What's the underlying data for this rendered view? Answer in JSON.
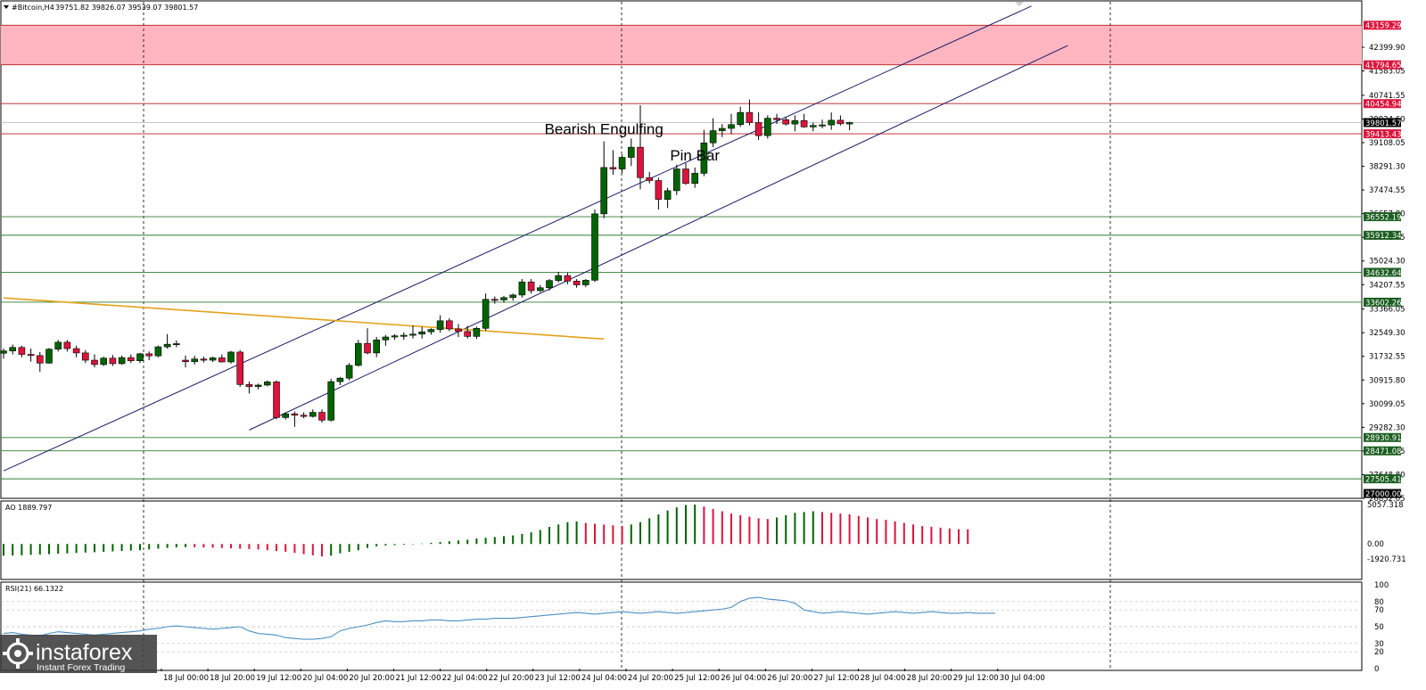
{
  "header": {
    "symbol": "#Bitcoin,H4",
    "ohlc": "39751.82 39826.07 39539.07 39801.57"
  },
  "colors": {
    "bull": "#006400",
    "bear": "#dc143c",
    "resistance_zone": "#ffb6c1",
    "level_line_green": "#2e7d32",
    "level_line_red": "#b71c1c",
    "channel": "#1a1a66",
    "trendline": "#e3a21a",
    "rsi": "#4a90c2"
  },
  "chart_data": [
    {
      "type": "candlestick",
      "symbol": "#Bitcoin",
      "timeframe": "H4",
      "ylim": [
        26832.05,
        44000
      ],
      "x_tick_labels": [
        "18 Jul 00:00",
        "18 Jul 20:00",
        "19 Jul 12:00",
        "20 Jul 04:00",
        "20 Jul 20:00",
        "21 Jul 12:00",
        "22 Jul 04:00",
        "22 Jul 20:00",
        "23 Jul 12:00",
        "24 Jul 04:00",
        "24 Jul 20:00",
        "25 Jul 12:00",
        "26 Jul 04:00",
        "26 Jul 20:00",
        "27 Jul 12:00",
        "28 Jul 04:00",
        "28 Jul 20:00",
        "29 Jul 12:00",
        "30 Jul 04:00"
      ],
      "y_tick_labels": [
        "42399.90",
        "41583.05",
        "40741.55",
        "39924.60",
        "39108.05",
        "38291.30",
        "37474.55",
        "36657.80",
        "35841.05",
        "35024.30",
        "34207.55",
        "33366.05",
        "32549.30",
        "31732.55",
        "30915.80",
        "30099.05",
        "29282.30",
        "28465.55",
        "27648.80",
        "26832.05"
      ],
      "price_tags": [
        {
          "value": 43159.29,
          "label": "43159.29",
          "color": "#dc143c"
        },
        {
          "value": 41794.65,
          "label": "41794.65",
          "color": "#dc143c"
        },
        {
          "value": 40454.94,
          "label": "40454.94",
          "color": "#dc143c"
        },
        {
          "value": 39801.57,
          "label": "39801.57",
          "color": "#000000"
        },
        {
          "value": 39413.43,
          "label": "39413.43",
          "color": "#dc143c"
        },
        {
          "value": 36552.19,
          "label": "36552.19",
          "color": "#1b5e20"
        },
        {
          "value": 35912.34,
          "label": "35912.34",
          "color": "#1b5e20"
        },
        {
          "value": 34632.64,
          "label": "34632.64",
          "color": "#1b5e20"
        },
        {
          "value": 33602.26,
          "label": "33602.26",
          "color": "#1b5e20"
        },
        {
          "value": 28930.91,
          "label": "28930.91",
          "color": "#1b5e20"
        },
        {
          "value": 28471.08,
          "label": "28471.08",
          "color": "#1b5e20"
        },
        {
          "value": 27505.41,
          "label": "27505.41",
          "color": "#1b5e20"
        },
        {
          "value": 27000.0,
          "label": "27000.00",
          "color": "#000000"
        }
      ],
      "resistance_zone": [
        41794.65,
        43159.29
      ],
      "annotations": [
        {
          "text": "Bearish Engulfing",
          "candle": 66
        },
        {
          "text": "Pin Bar",
          "candle": 76
        }
      ],
      "channel": [
        {
          "from": {
            "candle": 0,
            "price": 27780
          },
          "to": {
            "candle": 113,
            "price": 43820
          }
        },
        {
          "from": {
            "candle": 27,
            "price": 29190
          },
          "to": {
            "candle": 117,
            "price": 42460
          }
        }
      ],
      "trendline": {
        "from": {
          "candle": 0,
          "price": 33750
        },
        "to": {
          "candle": 66,
          "price": 32330
        }
      },
      "candles": [
        [
          31840,
          32000,
          31650,
          31920
        ],
        [
          31920,
          32140,
          31800,
          32040
        ],
        [
          32040,
          32100,
          31700,
          31800
        ],
        [
          31800,
          32000,
          31550,
          31760
        ],
        [
          31760,
          31880,
          31200,
          31500
        ],
        [
          31500,
          32020,
          31480,
          31980
        ],
        [
          31980,
          32300,
          31900,
          32220
        ],
        [
          32220,
          32300,
          31900,
          32000
        ],
        [
          32000,
          32100,
          31700,
          31850
        ],
        [
          31850,
          31950,
          31500,
          31600
        ],
        [
          31600,
          31800,
          31350,
          31450
        ],
        [
          31450,
          31720,
          31400,
          31670
        ],
        [
          31670,
          31780,
          31400,
          31480
        ],
        [
          31480,
          31760,
          31440,
          31690
        ],
        [
          31690,
          31800,
          31500,
          31580
        ],
        [
          31580,
          31850,
          31500,
          31820
        ],
        [
          31820,
          31900,
          31600,
          31750
        ],
        [
          31750,
          32100,
          31700,
          32060
        ],
        [
          32060,
          32500,
          32000,
          32150
        ],
        [
          32150,
          32280,
          32050,
          32170
        ],
        [
          31600,
          31760,
          31350,
          31550
        ],
        [
          31550,
          31750,
          31450,
          31640
        ],
        [
          31640,
          31720,
          31520,
          31600
        ],
        [
          31600,
          31720,
          31540,
          31680
        ],
        [
          31680,
          31800,
          31520,
          31540
        ],
        [
          31540,
          31920,
          31480,
          31880
        ],
        [
          31880,
          31950,
          30680,
          30760
        ],
        [
          30760,
          30860,
          30450,
          30690
        ],
        [
          30690,
          30790,
          30590,
          30740
        ],
        [
          30740,
          30900,
          30700,
          30850
        ],
        [
          30850,
          30900,
          29560,
          29620
        ],
        [
          29620,
          29800,
          29550,
          29750
        ],
        [
          29750,
          29830,
          29300,
          29700
        ],
        [
          29700,
          29800,
          29600,
          29660
        ],
        [
          29660,
          29900,
          29620,
          29800
        ],
        [
          29800,
          29900,
          29450,
          29530
        ],
        [
          29530,
          30950,
          29480,
          30860
        ],
        [
          30860,
          31020,
          30740,
          30980
        ],
        [
          30980,
          31500,
          30900,
          31420
        ],
        [
          31420,
          32300,
          31380,
          32180
        ],
        [
          32180,
          32700,
          31800,
          31850
        ],
        [
          31850,
          32400,
          31700,
          32300
        ],
        [
          32300,
          32470,
          32100,
          32400
        ],
        [
          32400,
          32500,
          32300,
          32440
        ],
        [
          32440,
          32560,
          32300,
          32460
        ],
        [
          32460,
          32800,
          32350,
          32500
        ],
        [
          32500,
          32750,
          32350,
          32580
        ],
        [
          32580,
          32700,
          32480,
          32660
        ],
        [
          32660,
          33150,
          32550,
          32960
        ],
        [
          32960,
          33050,
          32600,
          32680
        ],
        [
          32680,
          32850,
          32400,
          32590
        ],
        [
          32590,
          32780,
          32350,
          32420
        ],
        [
          32420,
          32760,
          32330,
          32700
        ],
        [
          32700,
          33900,
          32620,
          33700
        ],
        [
          33700,
          33800,
          33550,
          33680
        ],
        [
          33680,
          33820,
          33580,
          33760
        ],
        [
          33760,
          33900,
          33650,
          33850
        ],
        [
          33850,
          34400,
          33760,
          34300
        ],
        [
          34300,
          34400,
          33900,
          34000
        ],
        [
          34000,
          34200,
          33950,
          34100
        ],
        [
          34100,
          34400,
          34000,
          34350
        ],
        [
          34350,
          34650,
          34280,
          34520
        ],
        [
          34520,
          34620,
          34220,
          34330
        ],
        [
          34330,
          34400,
          34100,
          34200
        ],
        [
          34200,
          34400,
          34120,
          34360
        ],
        [
          34360,
          36800,
          34300,
          36650
        ],
        [
          36650,
          39150,
          36500,
          38250
        ],
        [
          38250,
          38850,
          38000,
          38200
        ],
        [
          38200,
          38700,
          38050,
          38600
        ],
        [
          38600,
          39250,
          38300,
          38950
        ],
        [
          38950,
          40400,
          37500,
          37900
        ],
        [
          37900,
          38100,
          37700,
          37800
        ],
        [
          37800,
          37900,
          36800,
          37150
        ],
        [
          37150,
          37550,
          36850,
          37450
        ],
        [
          37450,
          38350,
          37300,
          38200
        ],
        [
          38200,
          38400,
          37650,
          37700
        ],
        [
          37700,
          38250,
          37550,
          38050
        ],
        [
          38050,
          39550,
          37950,
          39100
        ],
        [
          39100,
          39950,
          38950,
          39520
        ],
        [
          39520,
          39750,
          39300,
          39600
        ],
        [
          39600,
          40100,
          39400,
          39730
        ],
        [
          39730,
          40350,
          39650,
          40150
        ],
        [
          40150,
          40600,
          39700,
          39800
        ],
        [
          39800,
          40150,
          39200,
          39350
        ],
        [
          39350,
          40050,
          39250,
          39950
        ],
        [
          39950,
          40100,
          39750,
          39900
        ],
        [
          39900,
          40000,
          39700,
          39750
        ],
        [
          39750,
          40050,
          39500,
          39870
        ],
        [
          39870,
          40100,
          39620,
          39650
        ],
        [
          39650,
          39800,
          39500,
          39700
        ],
        [
          39700,
          39900,
          39600,
          39720
        ],
        [
          39720,
          40150,
          39550,
          39880
        ],
        [
          39880,
          40050,
          39700,
          39760
        ],
        [
          39751.82,
          39826.07,
          39539.07,
          39801.57
        ]
      ]
    },
    {
      "type": "bar",
      "title": "AO 1889.797",
      "y_tick_labels": [
        "5057.318",
        "0.00",
        "-1920.731"
      ],
      "ylim": [
        -1920.731,
        5057.318
      ],
      "values": [
        -1500,
        -1480,
        -1450,
        -1400,
        -1350,
        -1300,
        -1250,
        -1200,
        -1150,
        -1100,
        -1050,
        -1000,
        -950,
        -900,
        -850,
        -800,
        -700,
        -600,
        -500,
        -420,
        -400,
        -420,
        -450,
        -480,
        -520,
        -560,
        -600,
        -650,
        -700,
        -800,
        -900,
        -1000,
        -1150,
        -1300,
        -1450,
        -1600,
        -1500,
        -1200,
        -1000,
        -800,
        -500,
        -300,
        -200,
        -150,
        -100,
        -50,
        50,
        150,
        250,
        350,
        450,
        550,
        700,
        800,
        900,
        1000,
        1100,
        1300,
        1500,
        1800,
        2200,
        2500,
        2800,
        2900,
        2700,
        2600,
        2500,
        2400,
        2300,
        2500,
        2800,
        3300,
        3800,
        4300,
        4700,
        5000,
        5057,
        4800,
        4500,
        4200,
        3900,
        3700,
        3500,
        3300,
        3200,
        3400,
        3700,
        4000,
        4100,
        4200,
        4100,
        4000,
        3900,
        3800,
        3600,
        3400,
        3200,
        3100,
        2900,
        2700,
        2500,
        2300,
        2200,
        2100,
        2000,
        1900,
        1889.797
      ]
    },
    {
      "type": "line",
      "title": "RSI(21) 66.1322",
      "y_tick_labels": [
        "100",
        "80",
        "70",
        "50",
        "30",
        "20",
        "0"
      ],
      "ylim": [
        0,
        100
      ],
      "values": [
        42,
        43,
        41,
        40,
        39,
        42,
        44,
        43,
        42,
        41,
        40,
        41,
        42,
        43,
        44,
        45,
        47,
        48,
        50,
        51,
        50,
        49,
        48,
        47,
        48,
        49,
        50,
        45,
        42,
        41,
        40,
        37,
        36,
        35,
        35,
        36,
        38,
        45,
        48,
        50,
        52,
        55,
        57,
        56,
        56,
        57,
        57,
        58,
        58,
        57,
        57,
        58,
        59,
        59,
        60,
        60,
        60,
        61,
        62,
        63,
        64,
        65,
        66,
        67,
        66,
        65,
        66,
        67,
        68,
        67,
        66,
        67,
        68,
        67,
        66,
        67,
        68,
        69,
        70,
        71,
        73,
        80,
        84,
        85,
        83,
        82,
        81,
        78,
        70,
        68,
        66,
        67,
        68,
        67,
        66,
        65,
        66,
        67,
        68,
        67,
        66,
        67,
        68,
        67,
        66,
        66,
        67,
        66,
        66,
        66.1322
      ]
    }
  ],
  "logo": {
    "brand": "instaforex",
    "tagline": "Instant Forex Trading"
  }
}
